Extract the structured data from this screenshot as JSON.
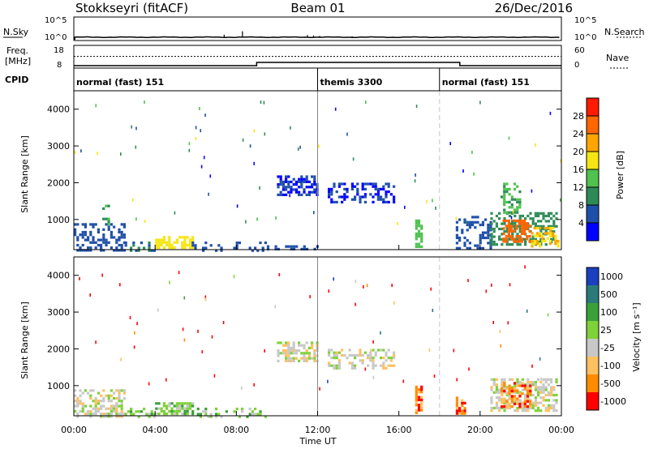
{
  "header": {
    "station": "Stokkseyri (fitACF)",
    "beam": "Beam 01",
    "date": "26/Dec/2016"
  },
  "noise_panel": {
    "left_label": "N.Sky",
    "right_label": "N.Search",
    "ticks_left": [
      "10^5",
      "10^0"
    ],
    "ticks_right": [
      "10^5",
      "10^0"
    ],
    "noise_floor_log": 0.6,
    "spikes": [
      {
        "time": 7.4,
        "value": 1.2
      },
      {
        "time": 8.3,
        "value": 2.0
      },
      {
        "time": 11.5,
        "value": 1.1
      },
      {
        "time": 11.8,
        "value": 1.0
      },
      {
        "time": 12.1,
        "value": 0.9
      },
      {
        "time": 13.7,
        "value": 0.8
      }
    ]
  },
  "freq_panel": {
    "left_label_1": "Freq.",
    "left_label_2": "[MHz]",
    "right_label": "Nave",
    "ticks_left": [
      "18",
      "8"
    ],
    "ticks_right": [
      "60",
      "0"
    ],
    "freq_low_mhz": 9,
    "freq_high_mhz": 11,
    "nave_value": 40,
    "high_freq_start": 9.0,
    "high_freq_end": 19.0
  },
  "cpid_panel": {
    "label": "CPID",
    "segments": [
      {
        "start": 0.0,
        "end": 12.0,
        "name": "normal (fast) 151"
      },
      {
        "start": 12.0,
        "end": 18.0,
        "name": "themis 3300"
      },
      {
        "start": 18.0,
        "end": 24.0,
        "name": "normal (fast) 151"
      }
    ]
  },
  "colors": {
    "power_scale": [
      "#0000ff",
      "#1f4fa8",
      "#2e8b57",
      "#4fc24f",
      "#f5e614",
      "#ffa500",
      "#ff6600",
      "#ff1a00"
    ],
    "velocity_scale": [
      "#1a3fbf",
      "#2a7a7a",
      "#3aa03a",
      "#7fd13a",
      "#c8c8c8",
      "#ffc060",
      "#ff8c00",
      "#ff0000"
    ],
    "dashed_line": "#c8c8c8"
  },
  "chart_data": [
    {
      "type": "heatmap",
      "name": "power",
      "ylabel": "Slant Range [km]",
      "xlim": [
        0,
        24
      ],
      "ylim": [
        180,
        4500
      ],
      "yticks": [
        1000,
        2000,
        3000,
        4000
      ],
      "colorbar": {
        "label": "Power [dB]",
        "ticks": [
          4,
          8,
          12,
          16,
          20,
          24,
          28
        ],
        "range": [
          0,
          32
        ]
      },
      "cpid_boundaries": [
        12.0,
        18.0
      ],
      "regions": [
        {
          "t0": 0.0,
          "t1": 2.5,
          "r0": 180,
          "r1": 900,
          "value": 6,
          "density": 0.45
        },
        {
          "t0": 1.4,
          "t1": 1.7,
          "r0": 900,
          "r1": 1400,
          "value": 12,
          "density": 0.5
        },
        {
          "t0": 2.5,
          "t1": 4.0,
          "r0": 180,
          "r1": 400,
          "value": 8,
          "density": 0.35
        },
        {
          "t0": 4.0,
          "t1": 5.8,
          "r0": 250,
          "r1": 550,
          "value": 18,
          "density": 0.6
        },
        {
          "t0": 5.8,
          "t1": 9.5,
          "r0": 180,
          "r1": 400,
          "value": 6,
          "density": 0.3
        },
        {
          "t0": 9.5,
          "t1": 12.0,
          "r0": 180,
          "r1": 300,
          "value": 6,
          "density": 0.3
        },
        {
          "t0": 10.0,
          "t1": 12.0,
          "r0": 1700,
          "r1": 2200,
          "value": 4,
          "density": 0.55
        },
        {
          "t0": 12.5,
          "t1": 15.8,
          "r0": 1500,
          "r1": 2000,
          "value": 4,
          "density": 0.45
        },
        {
          "t0": 16.8,
          "t1": 17.1,
          "r0": 250,
          "r1": 1000,
          "value": 14,
          "density": 0.7
        },
        {
          "t0": 18.8,
          "t1": 20.5,
          "r0": 250,
          "r1": 1100,
          "value": 5,
          "density": 0.4
        },
        {
          "t0": 20.5,
          "t1": 23.8,
          "r0": 300,
          "r1": 1200,
          "value": 10,
          "density": 0.55
        },
        {
          "t0": 21.1,
          "t1": 22.5,
          "r0": 400,
          "r1": 1000,
          "value": 26,
          "density": 0.6
        },
        {
          "t0": 21.0,
          "t1": 22.0,
          "r0": 1200,
          "r1": 2000,
          "value": 12,
          "density": 0.45
        },
        {
          "t0": 22.5,
          "t1": 23.8,
          "r0": 300,
          "r1": 800,
          "value": 20,
          "density": 0.5
        }
      ]
    },
    {
      "type": "heatmap",
      "name": "velocity",
      "ylabel": "Slant Range [km]",
      "xlabel": "Time UT",
      "xlim": [
        0,
        24
      ],
      "ylim": [
        180,
        4500
      ],
      "yticks": [
        1000,
        2000,
        3000,
        4000
      ],
      "xticks": [
        "00:00",
        "04:00",
        "08:00",
        "12:00",
        "16:00",
        "20:00",
        "00:00"
      ],
      "colorbar": {
        "label": "Velocity [m s⁻¹]",
        "ticks": [
          "1000",
          "500",
          "100",
          "25",
          "-25",
          "-100",
          "-500",
          "-1000"
        ]
      },
      "cpid_boundaries": [
        12.0,
        18.0
      ],
      "regions": [
        {
          "t0": 0.0,
          "t1": 2.5,
          "r0": 180,
          "r1": 900,
          "value": 4,
          "density": 0.45
        },
        {
          "t0": 2.5,
          "t1": 4.0,
          "r0": 180,
          "r1": 400,
          "value": 3,
          "density": 0.35
        },
        {
          "t0": 4.0,
          "t1": 5.8,
          "r0": 250,
          "r1": 550,
          "value": 3,
          "density": 0.6
        },
        {
          "t0": 5.8,
          "t1": 9.5,
          "r0": 180,
          "r1": 400,
          "value": 3,
          "density": 0.3
        },
        {
          "t0": 10.0,
          "t1": 12.0,
          "r0": 1700,
          "r1": 2200,
          "value": 4,
          "density": 0.55
        },
        {
          "t0": 12.5,
          "t1": 15.8,
          "r0": 1500,
          "r1": 2000,
          "value": 4,
          "density": 0.45
        },
        {
          "t0": 16.8,
          "t1": 17.1,
          "r0": 250,
          "r1": 1000,
          "value": 6,
          "density": 0.7
        },
        {
          "t0": 18.8,
          "t1": 19.2,
          "r0": 250,
          "r1": 700,
          "value": 6,
          "density": 0.7
        },
        {
          "t0": 20.5,
          "t1": 23.8,
          "r0": 300,
          "r1": 1200,
          "value": 4,
          "density": 0.55
        },
        {
          "t0": 21.0,
          "t1": 22.5,
          "r0": 400,
          "r1": 1100,
          "value": 6,
          "density": 0.55
        }
      ]
    }
  ]
}
